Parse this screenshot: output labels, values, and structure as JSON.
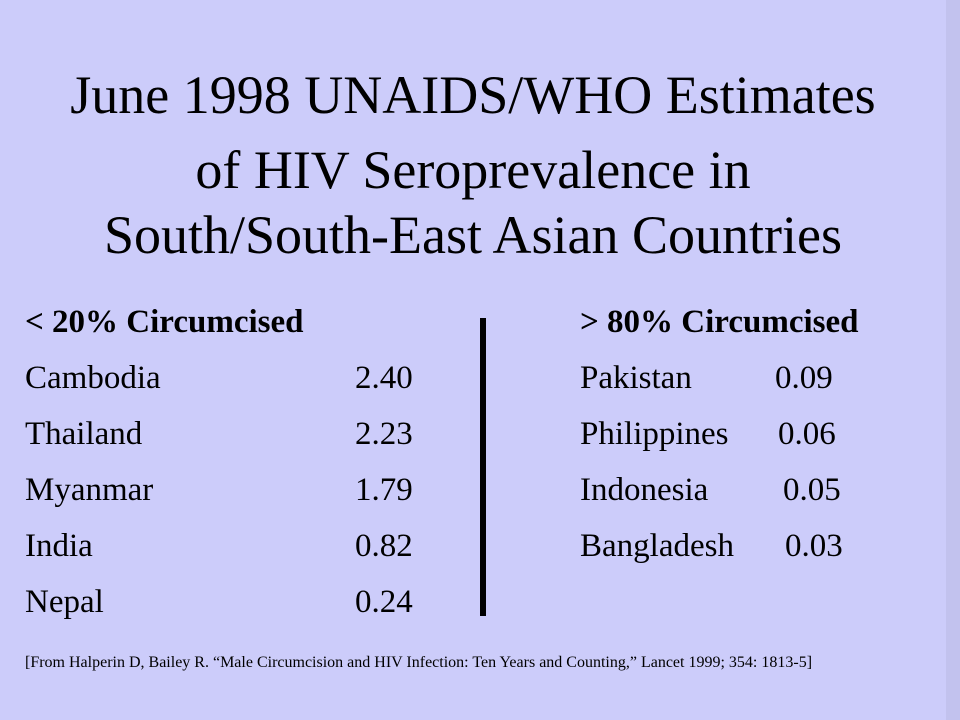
{
  "title": [
    "June 1998 UNAIDS/WHO Estimates",
    "of HIV Seroprevalence in",
    "South/South-East Asian Countries"
  ],
  "left": {
    "header": "< 20% Circumcised",
    "rows": [
      [
        "Cambodia",
        "2.40"
      ],
      [
        "Thailand",
        "2.23"
      ],
      [
        "Myanmar",
        "1.79"
      ],
      [
        "India",
        "0.82"
      ],
      [
        "Nepal",
        "0.24"
      ]
    ]
  },
  "right": {
    "header": "> 80% Circumcised",
    "rows": [
      [
        "Pakistan",
        "0.09"
      ],
      [
        "Philippines",
        "0.06"
      ],
      [
        "Indonesia",
        "0.05"
      ],
      [
        "Bangladesh",
        "0.03"
      ]
    ]
  },
  "citation": "[From Halperin D, Bailey R. “Male Circumcision and HIV Infection: Ten Years and Counting,” Lancet 1999; 354: 1813-5]"
}
